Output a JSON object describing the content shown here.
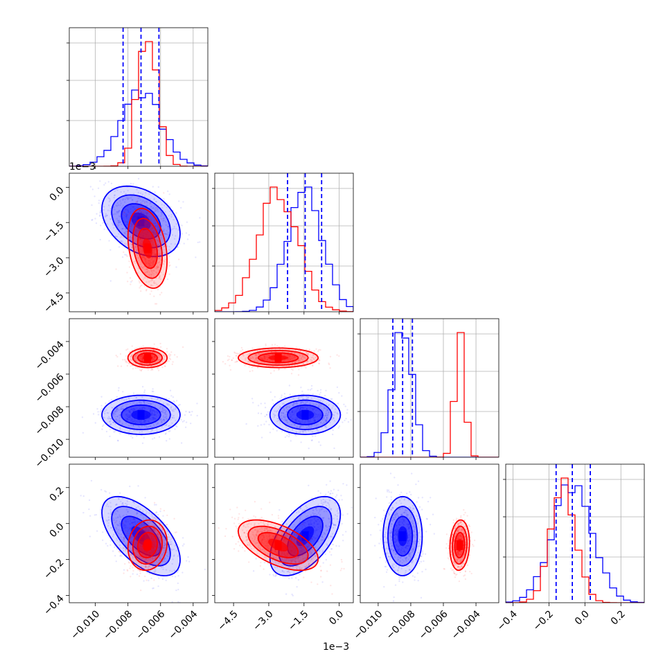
{
  "chart_data": {
    "type": "scatter",
    "title": "",
    "axis_offsets": {
      "p1_left": "1e−3",
      "p1_bottom": "1e−3"
    },
    "parameters": [
      {
        "range": [
          -0.0116,
          -0.0031
        ],
        "ticks": [
          -0.01,
          -0.008,
          -0.006,
          -0.004
        ],
        "tick_labels": [
          "−0.010",
          "−0.008",
          "−0.006",
          "−0.004"
        ]
      },
      {
        "range": [
          -5.3,
          0.6
        ],
        "ticks": [
          -4.5,
          -3.0,
          -1.5,
          0.0
        ],
        "tick_labels": [
          "−4.5",
          "−3.0",
          "−1.5",
          "0.0"
        ]
      },
      {
        "range": [
          -0.0111,
          -0.0026
        ],
        "ticks": [
          -0.01,
          -0.008,
          -0.006,
          -0.004
        ],
        "tick_labels": [
          "−0.010",
          "−0.008",
          "−0.006",
          "−0.004"
        ]
      },
      {
        "range": [
          -0.44,
          0.33
        ],
        "ticks": [
          -0.4,
          -0.2,
          0.0,
          0.2
        ],
        "tick_labels": [
          "−0.4",
          "−0.2",
          "0.0",
          "0.2"
        ]
      }
    ],
    "series": [
      {
        "color": "#0000ff",
        "mean": [
          -0.0072,
          -1.45,
          -0.0085,
          -0.07
        ],
        "std": [
          0.0012,
          0.75,
          0.0006,
          0.11
        ],
        "correlation": [
          [
            1,
            -0.35,
            0,
            -0.6
          ],
          [
            -0.35,
            1,
            0,
            0.55
          ],
          [
            0,
            0,
            1,
            0
          ],
          [
            -0.6,
            0.55,
            0,
            1
          ]
        ],
        "quantile_lines": [
          [
            -0.0083,
            -0.0072,
            -0.0061
          ],
          [
            -2.2,
            -1.45,
            -0.75
          ],
          [
            -0.0091,
            -0.0085,
            -0.0079
          ],
          [
            -0.16,
            -0.07,
            0.03
          ]
        ]
      },
      {
        "color": "#ff0000",
        "mean": [
          -0.0068,
          -2.6,
          -0.005,
          -0.12
        ],
        "std": [
          0.0006,
          0.85,
          0.0003,
          0.07
        ],
        "correlation": [
          [
            1,
            -0.3,
            0,
            0.1
          ],
          [
            -0.3,
            1,
            0,
            -0.55
          ],
          [
            0,
            0,
            1,
            0.1
          ],
          [
            0.1,
            -0.55,
            0.1,
            1
          ]
        ],
        "quantile_lines": []
      }
    ]
  }
}
